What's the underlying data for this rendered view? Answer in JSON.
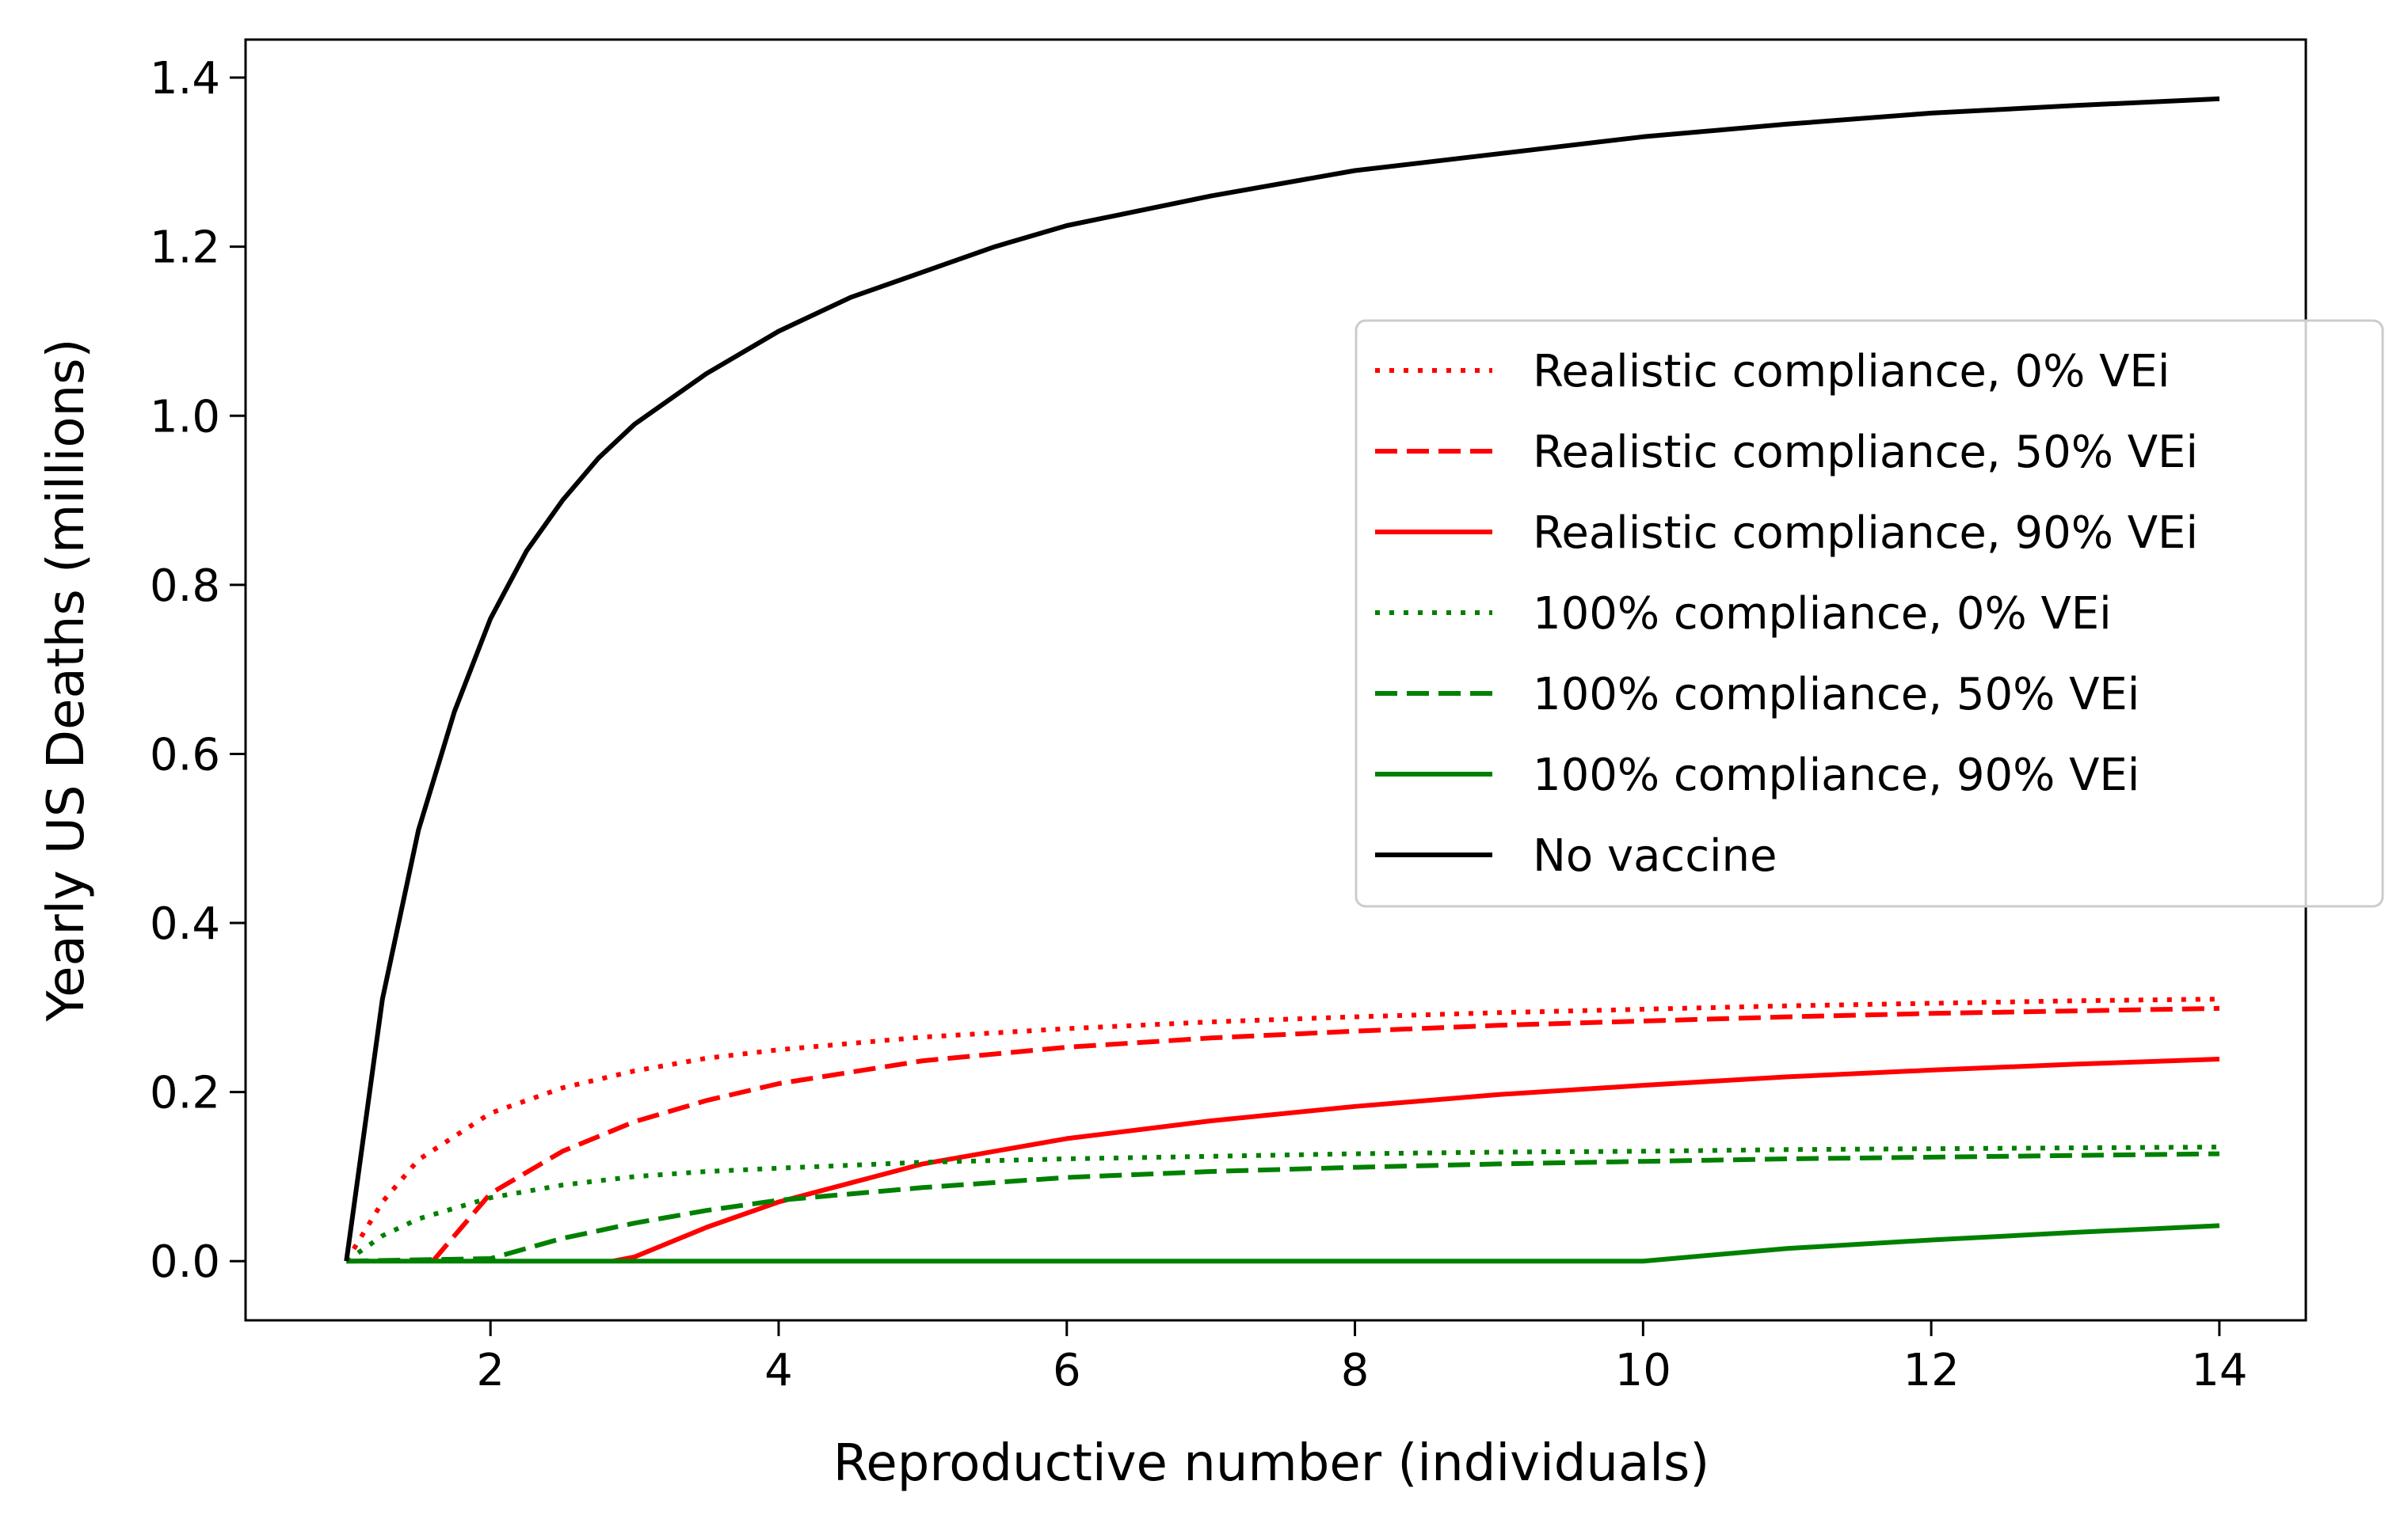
{
  "chart_data": {
    "type": "line",
    "title": "",
    "xlabel": "Reproductive number (individuals)",
    "ylabel": "Yearly US Deaths (millions)",
    "xlim": [
      0.3,
      14.6
    ],
    "ylim": [
      -0.07,
      1.445
    ],
    "xticks": [
      2,
      4,
      6,
      8,
      10,
      12,
      14
    ],
    "yticks": [
      0.0,
      0.2,
      0.4,
      0.6,
      0.8,
      1.0,
      1.2,
      1.4
    ],
    "xtick_labels": [
      "2",
      "4",
      "6",
      "8",
      "10",
      "12",
      "14"
    ],
    "ytick_labels": [
      "0.0",
      "0.2",
      "0.4",
      "0.6",
      "0.8",
      "1.0",
      "1.2",
      "1.4"
    ],
    "grid": false,
    "legend_position": "center-right",
    "series": [
      {
        "name": "Realistic compliance, 0% VEi",
        "color": "#ff0000",
        "dash": "dotted",
        "x": [
          1.0,
          1.25,
          1.5,
          2.0,
          2.5,
          3.0,
          3.5,
          4.0,
          5.0,
          6.0,
          7.0,
          8.0,
          9.0,
          10.0,
          11.0,
          12.0,
          13.0,
          14.0
        ],
        "y": [
          0.0,
          0.07,
          0.12,
          0.175,
          0.205,
          0.225,
          0.24,
          0.25,
          0.265,
          0.275,
          0.283,
          0.289,
          0.294,
          0.298,
          0.302,
          0.305,
          0.308,
          0.31
        ]
      },
      {
        "name": "Realistic compliance, 50% VEi",
        "color": "#ff0000",
        "dash": "dashed",
        "x": [
          1.6,
          1.8,
          2.0,
          2.5,
          3.0,
          3.5,
          4.0,
          5.0,
          6.0,
          7.0,
          8.0,
          9.0,
          10.0,
          11.0,
          12.0,
          13.0,
          14.0
        ],
        "y": [
          0.0,
          0.04,
          0.08,
          0.13,
          0.165,
          0.19,
          0.21,
          0.237,
          0.253,
          0.264,
          0.272,
          0.279,
          0.284,
          0.289,
          0.293,
          0.296,
          0.299
        ]
      },
      {
        "name": "Realistic compliance, 90% VEi",
        "color": "#ff0000",
        "dash": "solid",
        "x": [
          2.85,
          3.0,
          3.5,
          4.0,
          5.0,
          6.0,
          7.0,
          8.0,
          9.0,
          10.0,
          11.0,
          12.0,
          13.0,
          14.0
        ],
        "y": [
          0.0,
          0.005,
          0.04,
          0.07,
          0.115,
          0.145,
          0.166,
          0.183,
          0.197,
          0.208,
          0.218,
          0.226,
          0.233,
          0.239
        ]
      },
      {
        "name": "100% compliance, 0% VEi",
        "color": "#008000",
        "dash": "dotted",
        "x": [
          1.0,
          1.25,
          1.5,
          2.0,
          2.5,
          3.0,
          3.5,
          4.0,
          5.0,
          6.0,
          7.0,
          8.0,
          9.0,
          10.0,
          11.0,
          12.0,
          13.0,
          14.0
        ],
        "y": [
          0.0,
          0.03,
          0.05,
          0.075,
          0.09,
          0.1,
          0.106,
          0.11,
          0.117,
          0.121,
          0.124,
          0.127,
          0.129,
          0.13,
          0.132,
          0.133,
          0.134,
          0.135
        ]
      },
      {
        "name": "100% compliance, 50% VEi",
        "color": "#008000",
        "dash": "dashed",
        "x": [
          1.0,
          2.0,
          2.5,
          3.0,
          3.5,
          4.0,
          5.0,
          6.0,
          7.0,
          8.0,
          9.0,
          10.0,
          11.0,
          12.0,
          13.0,
          14.0
        ],
        "y": [
          0.0,
          0.003,
          0.027,
          0.045,
          0.06,
          0.072,
          0.087,
          0.099,
          0.106,
          0.111,
          0.115,
          0.118,
          0.121,
          0.123,
          0.125,
          0.127
        ]
      },
      {
        "name": "100% compliance, 90% VEi",
        "color": "#008000",
        "dash": "solid",
        "x": [
          1.0,
          10.0,
          11.0,
          12.0,
          13.0,
          14.0
        ],
        "y": [
          0.0,
          0.0,
          0.015,
          0.025,
          0.034,
          0.042
        ]
      },
      {
        "name": "No vaccine",
        "color": "#000000",
        "dash": "solid",
        "x": [
          1.0,
          1.25,
          1.5,
          1.75,
          2.0,
          2.25,
          2.5,
          2.75,
          3.0,
          3.5,
          4.0,
          4.5,
          5.0,
          5.5,
          6.0,
          7.0,
          8.0,
          9.0,
          10.0,
          11.0,
          12.0,
          13.0,
          14.0
        ],
        "y": [
          0.0,
          0.31,
          0.51,
          0.65,
          0.76,
          0.84,
          0.9,
          0.95,
          0.99,
          1.05,
          1.1,
          1.14,
          1.17,
          1.2,
          1.225,
          1.26,
          1.29,
          1.31,
          1.33,
          1.345,
          1.358,
          1.367,
          1.375
        ]
      }
    ]
  }
}
